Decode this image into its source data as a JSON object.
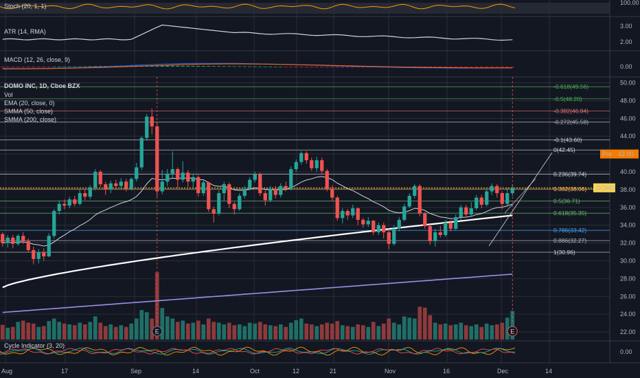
{
  "chart_data": {
    "type": "candlestick",
    "panes": {
      "stoch": {
        "label": "Stoch (20, 1, 1)",
        "ticks": [
          "100.00"
        ]
      },
      "atr": {
        "label": "ATR (14, RMA)",
        "ticks": [
          "3.00",
          "2.00"
        ]
      },
      "macd": {
        "label": "MACD (12, 26, close, 9)",
        "ticks": [
          "0.00"
        ]
      },
      "cycle": {
        "label": "Cycle Indicator (3, 20)",
        "ticks": [
          "0.00"
        ]
      }
    },
    "main": {
      "title": "DOMO INC, 1D, Cboe BZX",
      "indicators": [
        "Vol",
        "EMA (20, close, 0)",
        "SMMA (50, close)",
        "SMMA (200, close)"
      ],
      "ylim": [
        21,
        50.5
      ],
      "yticks": [
        "50.00",
        "48.00",
        "46.00",
        "44.00",
        "42.00",
        "40.00",
        "38.00",
        "36.00",
        "34.00",
        "32.00",
        "30.00",
        "28.00",
        "26.00",
        "24.00",
        "22.00"
      ],
      "ytick_values": [
        50,
        48,
        46,
        44,
        42,
        40,
        38,
        36,
        34,
        32,
        30,
        28,
        26,
        24,
        22
      ],
      "last_price_label": "DOMO",
      "last_price": 38.2,
      "premarket_label": "Pre",
      "premarket_value": "42.00",
      "premarket_price": 42.0,
      "earnings_marker": "E"
    },
    "x_labels": [
      "Aug",
      "17",
      "Sep",
      "14",
      "Oct",
      "12",
      "21",
      "Nov",
      "16",
      "Dec",
      "14"
    ],
    "fib_levels": [
      {
        "text": "-0.618(49.56)",
        "price": 49.56,
        "color": "#4caf50"
      },
      {
        "text": "-0.5(48.20)",
        "price": 48.2,
        "color": "#4caf50"
      },
      {
        "text": "-0.382(46.84)",
        "price": 46.84,
        "color": "#e57373"
      },
      {
        "text": "-0.272(45.58)",
        "price": 45.58,
        "color": "#b2b5be"
      },
      {
        "text": "-0.1(43.60)",
        "price": 43.6,
        "color": "#d1d4dc"
      },
      {
        "text": "0(42.45)",
        "price": 42.45,
        "color": "#d1d4dc"
      },
      {
        "text": "0.236(39.74)",
        "price": 39.74,
        "color": "#d1d4dc"
      },
      {
        "text": "0.382(38.06)",
        "price": 38.06,
        "color": "#ffb74d"
      },
      {
        "text": "0.5(36.71)",
        "price": 36.71,
        "color": "#66bb6a"
      },
      {
        "text": "0.618(35.35)",
        "price": 35.35,
        "color": "#66bb6a"
      },
      {
        "text": "0.786(33.42)",
        "price": 33.42,
        "color": "#42a5f5"
      },
      {
        "text": "0.886(32.27)",
        "price": 32.27,
        "color": "#b2b5be"
      },
      {
        "text": "1(30.96)",
        "price": 30.96,
        "color": "#d1d4dc"
      }
    ],
    "candles": [
      [
        33.0,
        32.0,
        33.2,
        31.6
      ],
      [
        32.0,
        32.6,
        32.9,
        31.5
      ],
      [
        32.6,
        31.9,
        32.9,
        31.4
      ],
      [
        31.9,
        32.8,
        33.0,
        31.7
      ],
      [
        32.8,
        32.2,
        33.2,
        31.9
      ],
      [
        32.2,
        31.2,
        32.5,
        31.0
      ],
      [
        31.2,
        30.2,
        31.6,
        29.6
      ],
      [
        30.2,
        31.0,
        31.3,
        29.7
      ],
      [
        31.0,
        30.5,
        31.4,
        30.0
      ],
      [
        30.5,
        32.8,
        33.1,
        30.4
      ],
      [
        32.8,
        35.6,
        35.8,
        32.5
      ],
      [
        35.6,
        36.4,
        36.8,
        35.2
      ],
      [
        36.4,
        36.2,
        36.9,
        35.8
      ],
      [
        36.2,
        36.9,
        37.2,
        35.9
      ],
      [
        36.9,
        36.4,
        37.3,
        36.1
      ],
      [
        36.4,
        37.6,
        38.0,
        36.2
      ],
      [
        37.6,
        37.2,
        38.1,
        36.8
      ],
      [
        37.2,
        38.2,
        38.5,
        36.9
      ],
      [
        38.2,
        40.0,
        40.3,
        37.9
      ],
      [
        40.0,
        38.6,
        40.2,
        38.3
      ],
      [
        38.6,
        38.0,
        38.9,
        37.4
      ],
      [
        38.0,
        38.7,
        39.0,
        37.6
      ],
      [
        38.7,
        38.4,
        39.1,
        38.0
      ],
      [
        38.4,
        38.9,
        39.3,
        38.1
      ],
      [
        38.9,
        38.1,
        39.2,
        37.8
      ],
      [
        38.1,
        39.2,
        39.4,
        37.9
      ],
      [
        39.2,
        40.5,
        41.0,
        38.9
      ],
      [
        40.5,
        43.8,
        44.0,
        40.2
      ],
      [
        43.8,
        46.2,
        46.5,
        43.5
      ],
      [
        46.2,
        45.1,
        47.1,
        44.2
      ],
      [
        45.1,
        37.8,
        45.5,
        37.2
      ],
      [
        37.8,
        38.9,
        40.2,
        37.5
      ],
      [
        38.9,
        39.8,
        40.3,
        38.4
      ],
      [
        39.8,
        40.3,
        42.3,
        39.2
      ],
      [
        40.3,
        39.1,
        40.5,
        38.2
      ],
      [
        39.1,
        39.9,
        41.2,
        38.8
      ],
      [
        39.9,
        38.9,
        40.2,
        38.3
      ],
      [
        38.9,
        39.4,
        39.8,
        38.1
      ],
      [
        39.4,
        37.6,
        39.6,
        37.2
      ],
      [
        37.6,
        38.8,
        39.0,
        37.3
      ],
      [
        38.8,
        35.8,
        38.9,
        35.5
      ],
      [
        35.8,
        35.3,
        36.1,
        34.3
      ],
      [
        35.3,
        37.6,
        37.9,
        35.1
      ],
      [
        37.6,
        38.6,
        38.9,
        36.7
      ],
      [
        38.6,
        36.4,
        38.8,
        35.9
      ],
      [
        36.4,
        35.8,
        36.6,
        35.2
      ],
      [
        35.8,
        37.3,
        37.6,
        35.6
      ],
      [
        37.3,
        38.1,
        38.4,
        37.0
      ],
      [
        38.1,
        39.1,
        39.4,
        37.9
      ],
      [
        39.1,
        39.7,
        40.0,
        38.8
      ],
      [
        39.7,
        37.6,
        39.9,
        37.3
      ],
      [
        37.6,
        36.8,
        37.9,
        36.2
      ],
      [
        36.8,
        38.1,
        38.4,
        36.6
      ],
      [
        38.1,
        37.4,
        38.4,
        37.0
      ],
      [
        37.4,
        38.4,
        38.7,
        37.1
      ],
      [
        38.4,
        38.1,
        38.9,
        37.8
      ],
      [
        38.1,
        40.3,
        40.6,
        37.9
      ],
      [
        40.3,
        41.1,
        41.4,
        40.0
      ],
      [
        41.1,
        42.1,
        42.3,
        40.8
      ],
      [
        42.1,
        41.3,
        42.3,
        40.9
      ],
      [
        41.3,
        40.4,
        41.6,
        40.1
      ],
      [
        40.4,
        41.3,
        41.7,
        40.0
      ],
      [
        41.3,
        40.1,
        41.6,
        39.7
      ],
      [
        40.1,
        38.1,
        40.3,
        37.8
      ],
      [
        38.1,
        37.1,
        38.5,
        36.7
      ],
      [
        37.1,
        34.8,
        37.3,
        34.5
      ],
      [
        34.8,
        35.6,
        35.9,
        34.2
      ],
      [
        35.6,
        35.1,
        35.8,
        34.6
      ],
      [
        35.1,
        35.9,
        36.3,
        34.8
      ],
      [
        35.9,
        34.6,
        36.0,
        34.0
      ],
      [
        34.6,
        34.1,
        34.8,
        33.7
      ],
      [
        34.1,
        34.5,
        34.9,
        33.8
      ],
      [
        34.5,
        33.2,
        34.6,
        32.9
      ],
      [
        33.2,
        34.0,
        34.3,
        32.9
      ],
      [
        34.0,
        33.2,
        34.3,
        32.5
      ],
      [
        33.2,
        31.9,
        33.6,
        31.3
      ],
      [
        31.9,
        33.6,
        34.0,
        31.7
      ],
      [
        33.6,
        34.6,
        34.9,
        33.3
      ],
      [
        34.6,
        36.1,
        36.4,
        34.4
      ],
      [
        36.1,
        37.3,
        37.6,
        35.9
      ],
      [
        37.3,
        38.4,
        38.6,
        37.0
      ],
      [
        38.4,
        35.3,
        38.6,
        35.0
      ],
      [
        35.3,
        33.9,
        35.5,
        33.6
      ],
      [
        33.9,
        32.2,
        34.1,
        31.8
      ],
      [
        32.2,
        33.2,
        33.6,
        31.6
      ],
      [
        33.2,
        32.9,
        33.9,
        32.6
      ],
      [
        32.9,
        34.3,
        34.6,
        32.7
      ],
      [
        34.3,
        33.6,
        34.6,
        33.3
      ],
      [
        33.6,
        34.9,
        35.2,
        33.4
      ],
      [
        34.9,
        36.0,
        36.3,
        34.6
      ],
      [
        36.0,
        35.2,
        36.3,
        34.9
      ],
      [
        35.2,
        35.9,
        36.6,
        35.0
      ],
      [
        35.9,
        37.1,
        37.4,
        35.7
      ],
      [
        37.1,
        36.3,
        37.4,
        35.9
      ],
      [
        36.3,
        37.8,
        38.1,
        36.1
      ],
      [
        37.8,
        38.4,
        38.7,
        37.4
      ],
      [
        38.4,
        37.6,
        38.6,
        37.1
      ],
      [
        37.6,
        36.4,
        37.8,
        35.8
      ],
      [
        36.4,
        37.6,
        38.2,
        36.1
      ],
      [
        37.6,
        38.2,
        38.6,
        37.3
      ]
    ],
    "volumes": [
      0.35,
      0.28,
      0.3,
      0.42,
      0.45,
      0.4,
      0.38,
      0.3,
      0.32,
      0.44,
      0.5,
      0.42,
      0.38,
      0.36,
      0.34,
      0.4,
      0.36,
      0.42,
      0.55,
      0.4,
      0.32,
      0.36,
      0.3,
      0.34,
      0.3,
      0.38,
      0.5,
      0.7,
      0.65,
      0.5,
      1.6,
      0.75,
      0.55,
      0.5,
      0.42,
      0.45,
      0.38,
      0.4,
      0.45,
      0.36,
      0.5,
      0.42,
      0.4,
      0.36,
      0.4,
      0.34,
      0.36,
      0.32,
      0.4,
      0.38,
      0.42,
      0.36,
      0.34,
      0.32,
      0.36,
      0.3,
      0.4,
      0.46,
      0.5,
      0.38,
      0.36,
      0.32,
      0.36,
      0.4,
      0.38,
      0.44,
      0.34,
      0.32,
      0.3,
      0.36,
      0.34,
      0.3,
      0.42,
      0.32,
      0.38,
      0.5,
      0.4,
      0.36,
      0.55,
      0.52,
      0.5,
      0.78,
      0.76,
      0.58,
      0.4,
      0.36,
      0.38,
      0.34,
      0.36,
      0.4,
      0.34,
      0.32,
      0.36,
      0.3,
      0.38,
      0.34,
      0.36,
      0.4,
      0.52,
      0.68
    ],
    "volume_ylim": [
      0,
      1.8
    ],
    "colors": {
      "up": "#26a69a",
      "down": "#ef5350",
      "vol_up": "#1f6f67",
      "vol_down": "#8e3a3c",
      "ema20": "#d1d4dc",
      "smma50": "#ffffff",
      "smma200": "#9c8fe6",
      "stoch": "#ff9800",
      "cycle1": "#ff9800",
      "cycle2": "#26a69a",
      "cycle3": "#ef5350",
      "atr": "#d1d4dc",
      "macd": "#2962ff",
      "signal": "#ff6d00",
      "premarket_bg": "#f57c00",
      "last_bg": "#ffd54f"
    }
  }
}
